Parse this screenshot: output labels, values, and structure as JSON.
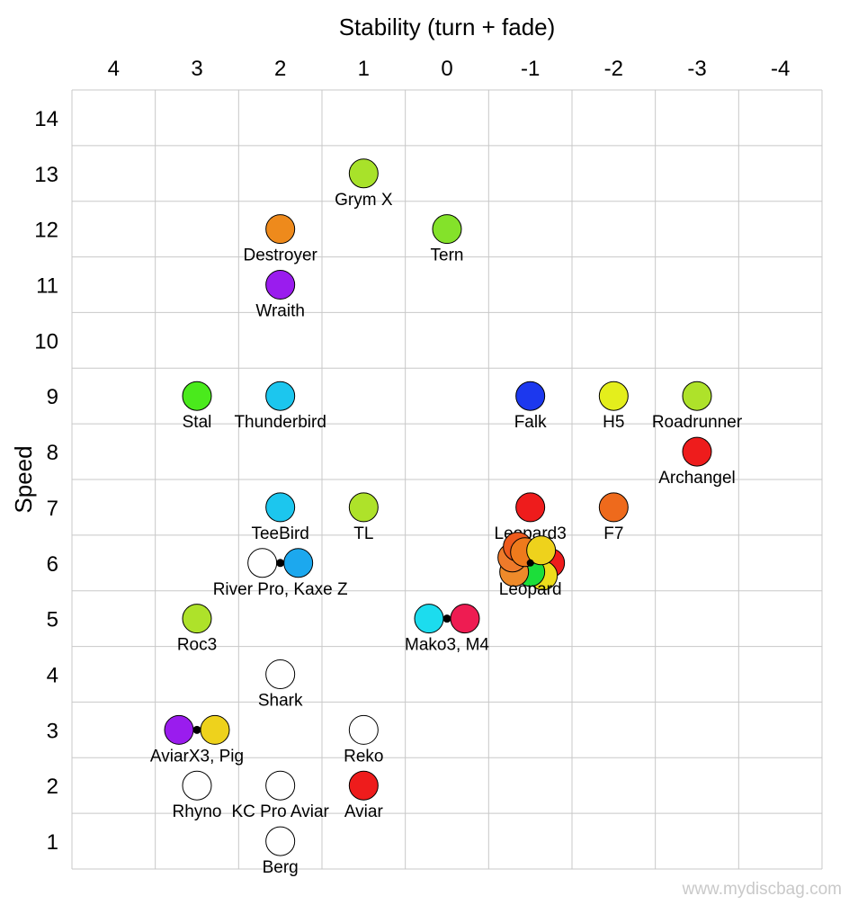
{
  "chart_data": {
    "type": "scatter",
    "title": "Stability (turn + fade)",
    "xlabel": "Stability (turn + fade)",
    "ylabel": "Speed",
    "xlim": [
      4.5,
      -4.5
    ],
    "ylim": [
      0.5,
      14.5
    ],
    "x_ticks": [
      "4",
      "3",
      "2",
      "1",
      "0",
      "-1",
      "-2",
      "-3",
      "-4"
    ],
    "y_ticks": [
      "14",
      "13",
      "12",
      "11",
      "10",
      "9",
      "8",
      "7",
      "6",
      "5",
      "4",
      "3",
      "2",
      "1"
    ],
    "grid": true,
    "groups": [
      {
        "label": "Grym X",
        "x": 1,
        "y": 13,
        "discs": [
          {
            "name": "Grym X",
            "color": "#a8e22a"
          }
        ]
      },
      {
        "label": "Destroyer",
        "x": 2,
        "y": 12,
        "discs": [
          {
            "name": "Destroyer",
            "color": "#ee8a1c"
          }
        ]
      },
      {
        "label": "Tern",
        "x": 0,
        "y": 12,
        "discs": [
          {
            "name": "Tern",
            "color": "#84e22a"
          }
        ]
      },
      {
        "label": "Wraith",
        "x": 2,
        "y": 11,
        "discs": [
          {
            "name": "Wraith",
            "color": "#9a1cee"
          }
        ]
      },
      {
        "label": "Stal",
        "x": 3,
        "y": 9,
        "discs": [
          {
            "name": "Stal",
            "color": "#4aea1c"
          }
        ]
      },
      {
        "label": "Thunderbird",
        "x": 2,
        "y": 9,
        "discs": [
          {
            "name": "Thunderbird",
            "color": "#1cc6ee"
          }
        ]
      },
      {
        "label": "Falk",
        "x": -1,
        "y": 9,
        "discs": [
          {
            "name": "Falk",
            "color": "#1c38ee"
          }
        ]
      },
      {
        "label": "H5",
        "x": -2,
        "y": 9,
        "discs": [
          {
            "name": "H5",
            "color": "#e4ee1c"
          }
        ]
      },
      {
        "label": "Roadrunner",
        "x": -3,
        "y": 9,
        "discs": [
          {
            "name": "Roadrunner",
            "color": "#aee22a"
          }
        ]
      },
      {
        "label": "Archangel",
        "x": -3,
        "y": 8,
        "discs": [
          {
            "name": "Archangel",
            "color": "#ee1c1c"
          }
        ]
      },
      {
        "label": "TeeBird",
        "x": 2,
        "y": 7,
        "discs": [
          {
            "name": "TeeBird",
            "color": "#1cc6ee"
          }
        ]
      },
      {
        "label": "TL",
        "x": 1,
        "y": 7,
        "discs": [
          {
            "name": "TL",
            "color": "#aee22a"
          }
        ]
      },
      {
        "label": "Leopard3",
        "x": -1,
        "y": 7,
        "discs": [
          {
            "name": "Leopard3",
            "color": "#ee1c1c"
          }
        ]
      },
      {
        "label": "F7",
        "x": -2,
        "y": 7,
        "discs": [
          {
            "name": "F7",
            "color": "#ee6a1c"
          }
        ]
      },
      {
        "label": "River Pro, Kaxe Z",
        "x": 2,
        "y": 6,
        "discs": [
          {
            "name": "River Pro",
            "color": "#ffffff"
          },
          {
            "name": "Kaxe Z",
            "color": "#1ca8ee"
          }
        ]
      },
      {
        "label": "Leopard",
        "x": -1,
        "y": 6,
        "cluster": true,
        "discs": [
          {
            "name": "Leopard",
            "color": "#ee1c1c"
          },
          {
            "name": "Leopard",
            "color": "#eedc1c"
          },
          {
            "name": "Leopard",
            "color": "#1cde3a"
          },
          {
            "name": "Leopard",
            "color": "#ee8a2a"
          },
          {
            "name": "Leopard",
            "color": "#ee7a2a"
          },
          {
            "name": "Leopard",
            "color": "#ee5a1c"
          },
          {
            "name": "Leopard",
            "color": "#ee7a1c"
          },
          {
            "name": "Leopard",
            "color": "#eed21c"
          }
        ]
      },
      {
        "label": "Roc3",
        "x": 3,
        "y": 5,
        "discs": [
          {
            "name": "Roc3",
            "color": "#aee22a"
          }
        ]
      },
      {
        "label": "Mako3, M4",
        "x": 0,
        "y": 5,
        "discs": [
          {
            "name": "Mako3",
            "color": "#1cdcee"
          },
          {
            "name": "M4",
            "color": "#ee1c52"
          }
        ]
      },
      {
        "label": "Shark",
        "x": 2,
        "y": 4,
        "discs": [
          {
            "name": "Shark",
            "color": "#ffffff"
          }
        ]
      },
      {
        "label": "AviarX3, Pig",
        "x": 3,
        "y": 3,
        "discs": [
          {
            "name": "AviarX3",
            "color": "#9a1cee"
          },
          {
            "name": "Pig",
            "color": "#eed21c"
          }
        ]
      },
      {
        "label": "Reko",
        "x": 1,
        "y": 3,
        "discs": [
          {
            "name": "Reko",
            "color": "#ffffff"
          }
        ]
      },
      {
        "label": "Rhyno",
        "x": 3,
        "y": 2,
        "discs": [
          {
            "name": "Rhyno",
            "color": "#ffffff"
          }
        ]
      },
      {
        "label": "KC Pro Aviar",
        "x": 2,
        "y": 2,
        "discs": [
          {
            "name": "KC Pro Aviar",
            "color": "#ffffff"
          }
        ]
      },
      {
        "label": "Aviar",
        "x": 1,
        "y": 2,
        "discs": [
          {
            "name": "Aviar",
            "color": "#ee1c1c"
          }
        ]
      },
      {
        "label": "Berg",
        "x": 2,
        "y": 1,
        "discs": [
          {
            "name": "Berg",
            "color": "#ffffff"
          }
        ]
      }
    ]
  },
  "watermark": "www.mydiscbag.com"
}
